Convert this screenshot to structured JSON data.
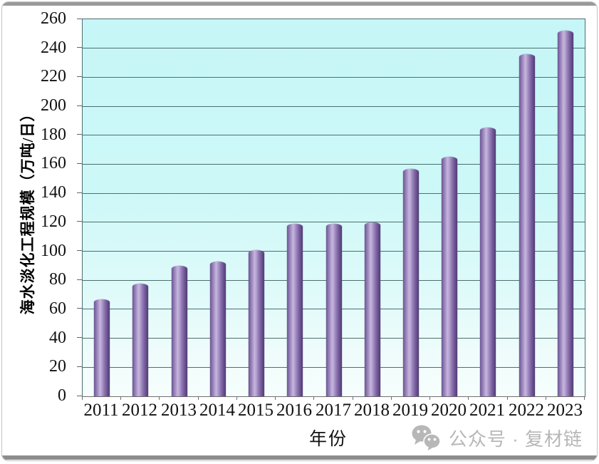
{
  "chart_data": {
    "type": "bar",
    "title": "",
    "categories": [
      "2011",
      "2012",
      "2013",
      "2014",
      "2015",
      "2016",
      "2017",
      "2018",
      "2019",
      "2020",
      "2021",
      "2022",
      "2023"
    ],
    "values": [
      67,
      77.5,
      90,
      93,
      101,
      119,
      119,
      120,
      157,
      165,
      185.5,
      236,
      252
    ],
    "xlabel": "年份",
    "ylabel": "海水淡化工程规模（万吨/日）",
    "ylim": [
      0,
      260
    ],
    "ytick_step": 20,
    "yticks": [
      0,
      20,
      40,
      60,
      80,
      100,
      120,
      140,
      160,
      180,
      200,
      220,
      240,
      260
    ],
    "grid": "horizontal",
    "legend": "none",
    "colors": {
      "plot_bg_top": "#c6f6f7",
      "plot_bg_bottom": "#f6fefd",
      "bar_edge": "#533c75",
      "bar_highlight": "#c6b6dd",
      "gridline": "#4e6e6e",
      "axis_text": "#111111",
      "watermark_gray": "#b7b7b7"
    }
  },
  "watermark": {
    "icon": "wechat-icon",
    "text": "公众号 · 复材链"
  }
}
